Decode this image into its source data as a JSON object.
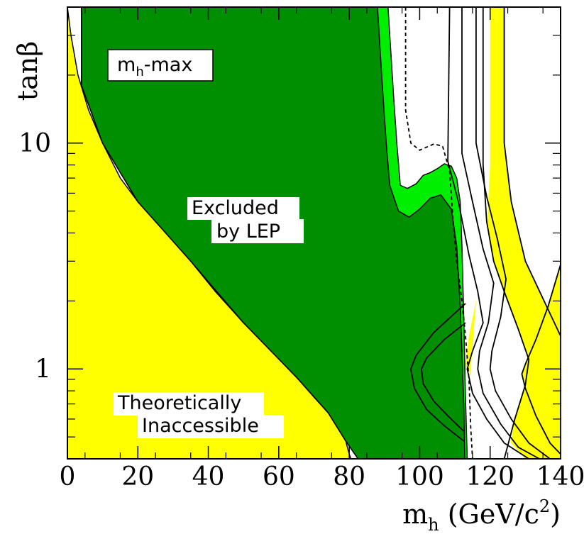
{
  "chart_data": {
    "type": "area",
    "x_axis": {
      "label_main": "m",
      "label_sub": "h",
      "label_unit": " (GeV/c",
      "label_sup": "2",
      "label_close": ")",
      "range": [
        0,
        140
      ],
      "ticks": [
        0,
        20,
        40,
        60,
        80,
        100,
        120,
        140
      ],
      "tick_labels": [
        "0",
        "20",
        "40",
        "60",
        "80",
        "100",
        "120",
        "140"
      ]
    },
    "y_axis": {
      "label": "tanβ",
      "scale": "log",
      "range": [
        0.4,
        40
      ],
      "tick_labels": [
        {
          "value": 1,
          "text": "1"
        },
        {
          "value": 10,
          "text": "10"
        }
      ]
    },
    "annotations": {
      "scenario_main": "m",
      "scenario_sub": "h",
      "scenario_rest": "-max",
      "excluded_line1": "Excluded",
      "excluded_line2": "by LEP",
      "theory_line1": "Theoretically",
      "theory_line2": "Inaccessible"
    },
    "regions": {
      "theoretically_inaccessible_left": [
        [
          0,
          40
        ],
        [
          1,
          30
        ],
        [
          3,
          20
        ],
        [
          6,
          14
        ],
        [
          10,
          10
        ],
        [
          15,
          7
        ],
        [
          20,
          5.5
        ],
        [
          28,
          4
        ],
        [
          35,
          3
        ],
        [
          42,
          2.2
        ],
        [
          50,
          1.6
        ],
        [
          58,
          1.2
        ],
        [
          65,
          0.92
        ],
        [
          70,
          0.75
        ],
        [
          74,
          0.64
        ],
        [
          77,
          0.56
        ],
        [
          79,
          0.48
        ],
        [
          80,
          0.42
        ],
        [
          80.5,
          0.4
        ],
        [
          0,
          0.4
        ]
      ],
      "theoretically_inaccessible_right": [
        [
          140,
          2.9
        ],
        [
          136.5,
          1.9
        ],
        [
          133,
          1.35
        ],
        [
          130,
          1.05
        ],
        [
          129,
          0.95
        ],
        [
          130,
          0.82
        ],
        [
          133,
          0.62
        ],
        [
          137,
          0.47
        ],
        [
          140,
          0.42
        ],
        [
          140,
          0.4
        ]
      ],
      "lep_excluded_light": [
        [
          4,
          40
        ],
        [
          91,
          40
        ],
        [
          92.5,
          17
        ],
        [
          93.5,
          10
        ],
        [
          94.5,
          6.5
        ],
        [
          96.5,
          6.3
        ],
        [
          99,
          6.6
        ],
        [
          101,
          7.2
        ],
        [
          103,
          7.4
        ],
        [
          105,
          7.7
        ],
        [
          107,
          8.1
        ],
        [
          109,
          7.9
        ],
        [
          110.5,
          7.0
        ],
        [
          111.5,
          5.5
        ],
        [
          112,
          3.5
        ],
        [
          112.5,
          1.7
        ],
        [
          113,
          0.75
        ],
        [
          113.5,
          0.4
        ],
        [
          82.5,
          0.4
        ],
        [
          79,
          0.48
        ],
        [
          74,
          0.64
        ],
        [
          65,
          0.92
        ],
        [
          50,
          1.6
        ],
        [
          35,
          3
        ],
        [
          20,
          5.5
        ],
        [
          10,
          10
        ],
        [
          4,
          18
        ]
      ],
      "lep_excluded_dark": [
        [
          4,
          40
        ],
        [
          88,
          40
        ],
        [
          89.5,
          17
        ],
        [
          90.5,
          10
        ],
        [
          91.5,
          6.5
        ],
        [
          94,
          5
        ],
        [
          97,
          4.7
        ],
        [
          100,
          5.1
        ],
        [
          103,
          5.7
        ],
        [
          106,
          5.9
        ],
        [
          109,
          5.1
        ],
        [
          110.5,
          3.5
        ],
        [
          111.5,
          1.9
        ],
        [
          112,
          1.2
        ],
        [
          112.5,
          0.7
        ],
        [
          112.8,
          0.4
        ],
        [
          82.5,
          0.4
        ],
        [
          79,
          0.48
        ],
        [
          74,
          0.64
        ],
        [
          65,
          0.92
        ],
        [
          50,
          1.6
        ],
        [
          35,
          3
        ],
        [
          20,
          5.5
        ],
        [
          10,
          10
        ],
        [
          4,
          18
        ]
      ],
      "expected_limit": [
        [
          96,
          40
        ],
        [
          96,
          14
        ],
        [
          97.5,
          10
        ],
        [
          100,
          9.3
        ],
        [
          104,
          9.9
        ],
        [
          106.5,
          9.7
        ],
        [
          108.5,
          7.5
        ],
        [
          109.5,
          4.5
        ],
        [
          110.5,
          3
        ],
        [
          112,
          2
        ],
        [
          113,
          1.4
        ],
        [
          114,
          0.9
        ],
        [
          114.5,
          0.55
        ],
        [
          115,
          0.4
        ]
      ],
      "right_band_outer_white": [
        [
          116,
          40
        ],
        [
          117,
          40
        ],
        [
          118,
          40
        ],
        [
          118,
          8
        ],
        [
          119,
          4.5
        ],
        [
          121,
          3
        ],
        [
          124,
          2.2
        ],
        [
          128,
          1.5
        ],
        [
          131,
          1.1
        ],
        [
          130,
          0.85
        ],
        [
          127,
          0.6
        ],
        [
          125,
          0.4
        ],
        [
          118,
          0.4
        ],
        [
          116,
          0.55
        ],
        [
          114.5,
          1.0
        ],
        [
          116,
          2.0
        ],
        [
          116,
          8
        ]
      ],
      "right_band_yellow": [
        [
          120,
          40
        ],
        [
          124,
          40
        ],
        [
          124,
          10
        ],
        [
          126,
          5.5
        ],
        [
          130,
          3
        ],
        [
          136,
          1.9
        ],
        [
          140,
          1.4
        ],
        [
          140,
          0.4
        ],
        [
          130,
          0.4
        ],
        [
          123.5,
          0.52
        ],
        [
          118,
          0.72
        ],
        [
          113,
          1.05
        ],
        [
          114,
          1.4
        ],
        [
          116.5,
          2.2
        ],
        [
          119,
          4
        ],
        [
          120,
          8
        ]
      ],
      "right_band_lines": [
        [
          [
            118,
            40
          ],
          [
            118,
            8
          ],
          [
            119,
            4.5
          ],
          [
            121,
            3
          ],
          [
            124,
            2.2
          ],
          [
            128,
            1.5
          ],
          [
            131,
            1.1
          ],
          [
            130,
            0.85
          ],
          [
            127,
            0.6
          ],
          [
            124,
            0.4
          ]
        ],
        [
          [
            124,
            40
          ],
          [
            124,
            10
          ],
          [
            126,
            5.5
          ],
          [
            130,
            3
          ],
          [
            136,
            1.9
          ],
          [
            140,
            1.4
          ]
        ],
        [
          [
            108.5,
            40
          ],
          [
            108,
            8.3
          ],
          [
            111,
            5.5
          ],
          [
            114,
            3.2
          ],
          [
            116.5,
            2.2
          ],
          [
            118,
            1.6
          ],
          [
            115,
            1.2
          ],
          [
            113.5,
            1.0
          ],
          [
            115,
            0.78
          ],
          [
            119,
            0.6
          ],
          [
            124,
            0.47
          ],
          [
            131,
            0.4
          ]
        ],
        [
          [
            112,
            40
          ],
          [
            112,
            9
          ],
          [
            115,
            5.5
          ],
          [
            118,
            3.4
          ],
          [
            121,
            2.4
          ],
          [
            119.5,
            1.6
          ],
          [
            117,
            1.2
          ],
          [
            116.5,
            1.0
          ],
          [
            118,
            0.78
          ],
          [
            123,
            0.57
          ],
          [
            128,
            0.45
          ],
          [
            134,
            0.4
          ]
        ],
        [
          [
            116,
            40
          ],
          [
            116,
            10
          ],
          [
            119,
            5.8
          ],
          [
            122,
            3.8
          ],
          [
            124.5,
            2.5
          ],
          [
            123,
            1.7
          ],
          [
            120.5,
            1.2
          ],
          [
            120,
            1.0
          ],
          [
            121.5,
            0.8
          ],
          [
            126,
            0.6
          ],
          [
            131,
            0.47
          ],
          [
            137,
            0.4
          ]
        ],
        [
          [
            140,
            2.9
          ],
          [
            136.5,
            1.9
          ],
          [
            133,
            1.35
          ],
          [
            130,
            1.05
          ],
          [
            129,
            0.95
          ],
          [
            130,
            0.82
          ],
          [
            133,
            0.62
          ],
          [
            137,
            0.47
          ],
          [
            140,
            0.42
          ]
        ],
        [
          [
            113,
            1.6
          ],
          [
            107,
            1.35
          ],
          [
            102,
            1.12
          ],
          [
            100.5,
            1.0
          ],
          [
            101,
            0.86
          ],
          [
            104,
            0.72
          ],
          [
            108,
            0.62
          ],
          [
            112.5,
            0.53
          ]
        ],
        [
          [
            113,
            1.95
          ],
          [
            104,
            1.45
          ],
          [
            99,
            1.15
          ],
          [
            97.5,
            1.0
          ],
          [
            98.5,
            0.82
          ],
          [
            102,
            0.66
          ],
          [
            107,
            0.56
          ],
          [
            112.5,
            0.48
          ]
        ]
      ]
    },
    "colors": {
      "dark_green": "#008F00",
      "light_green": "#00EE00",
      "yellow": "#FFFF00",
      "white": "#FFFFFF",
      "black": "#000000"
    }
  }
}
